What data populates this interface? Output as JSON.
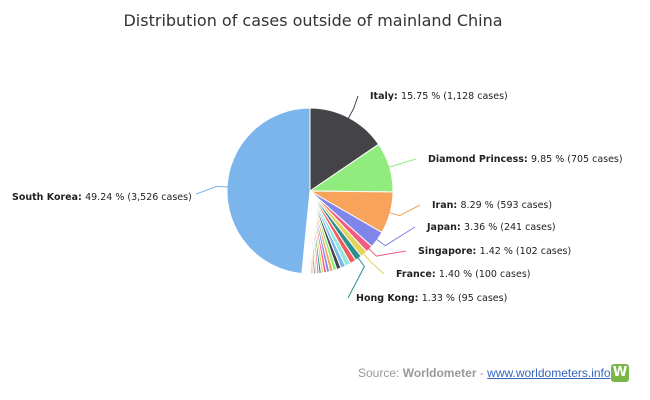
{
  "source": {
    "prefix": "Source: ",
    "name": "Worldometer",
    "separator": " - ",
    "link": "www.worldometers.info",
    "logo_letter": "W",
    "logo_color": "#7ab648"
  },
  "chart_data": {
    "type": "pie",
    "title": "Distribution of cases outside of mainland China",
    "slices": [
      {
        "name": "Italy",
        "pct": 15.75,
        "pct_text": "15.75 %",
        "cases_text": "1,128 cases",
        "color": "#434348",
        "labeled": true
      },
      {
        "name": "Diamond Princess",
        "pct": 9.85,
        "pct_text": "9.85 %",
        "cases_text": "705 cases",
        "color": "#90ed7d",
        "labeled": true
      },
      {
        "name": "Iran",
        "pct": 8.29,
        "pct_text": "8.29 %",
        "cases_text": "593 cases",
        "color": "#f7a35c",
        "labeled": true
      },
      {
        "name": "Japan",
        "pct": 3.36,
        "pct_text": "3.36 %",
        "cases_text": "241 cases",
        "color": "#8085e9",
        "labeled": true
      },
      {
        "name": "Singapore",
        "pct": 1.42,
        "pct_text": "1.42 %",
        "cases_text": "102 cases",
        "color": "#f15c80",
        "labeled": true
      },
      {
        "name": "France",
        "pct": 1.4,
        "pct_text": "1.40 %",
        "cases_text": "100 cases",
        "color": "#e4d354",
        "labeled": true
      },
      {
        "name": "Hong Kong",
        "pct": 1.33,
        "pct_text": "1.33 %",
        "cases_text": "95 cases",
        "color": "#2b908f",
        "labeled": true
      },
      {
        "pct": 1.2,
        "color": "#f45b5b",
        "labeled": false
      },
      {
        "pct": 1.1,
        "color": "#91e8e1",
        "labeled": false
      },
      {
        "pct": 0.95,
        "color": "#7cb5ec",
        "labeled": false
      },
      {
        "pct": 0.85,
        "color": "#434348",
        "labeled": false
      },
      {
        "pct": 0.75,
        "color": "#90ed7d",
        "labeled": false
      },
      {
        "pct": 0.7,
        "color": "#f7a35c",
        "labeled": false
      },
      {
        "pct": 0.62,
        "color": "#8085e9",
        "labeled": false
      },
      {
        "pct": 0.55,
        "color": "#f15c80",
        "labeled": false
      },
      {
        "pct": 0.5,
        "color": "#e4d354",
        "labeled": false
      },
      {
        "pct": 0.45,
        "color": "#2b908f",
        "labeled": false
      },
      {
        "pct": 0.4,
        "color": "#f45b5b",
        "labeled": false
      },
      {
        "pct": 0.36,
        "color": "#91e8e1",
        "labeled": false
      },
      {
        "pct": 0.33,
        "color": "#434348",
        "labeled": false
      },
      {
        "pct": 0.3,
        "color": "#f7a35c",
        "labeled": false
      },
      {
        "pct": 0.27,
        "color": "#8085e9",
        "labeled": false
      },
      {
        "pct": 0.24,
        "color": "#90ed7d",
        "labeled": false
      },
      {
        "pct": 0.2,
        "color": "#f15c80",
        "labeled": false
      },
      {
        "pct": 0.18,
        "color": "#e4d354",
        "labeled": false
      },
      {
        "pct": 0.16,
        "color": "#2b908f",
        "labeled": false
      },
      {
        "pct": 0.14,
        "color": "#91e8e1",
        "labeled": false
      },
      {
        "pct": 0.12,
        "color": "#f45b5b",
        "labeled": false
      },
      {
        "pct": 0.1,
        "color": "#7cb5ec",
        "labeled": false
      },
      {
        "pct": 0.09,
        "color": "#434348",
        "labeled": false
      },
      {
        "pct": 0.08,
        "color": "#90ed7d",
        "labeled": false
      },
      {
        "pct": 0.07,
        "color": "#f7a35c",
        "labeled": false
      },
      {
        "pct": 0.06,
        "color": "#8085e9",
        "labeled": false
      },
      {
        "pct": 0.05,
        "color": "#f15c80",
        "labeled": false
      },
      {
        "pct": 0.05,
        "color": "#e4d354",
        "labeled": false
      },
      {
        "pct": 0.04,
        "color": "#2b908f",
        "labeled": false
      },
      {
        "pct": 0.04,
        "color": "#f45b5b",
        "labeled": false
      },
      {
        "pct": 0.03,
        "color": "#91e8e1",
        "labeled": false
      },
      {
        "pct": 0.03,
        "color": "#434348",
        "labeled": false
      },
      {
        "pct": 0.02,
        "color": "#90ed7d",
        "labeled": false
      },
      {
        "name": "South Korea",
        "pct": 49.24,
        "pct_text": "49.24 %",
        "cases_text": "3,526 cases",
        "color": "#7cb5ec",
        "labeled": true
      }
    ]
  }
}
